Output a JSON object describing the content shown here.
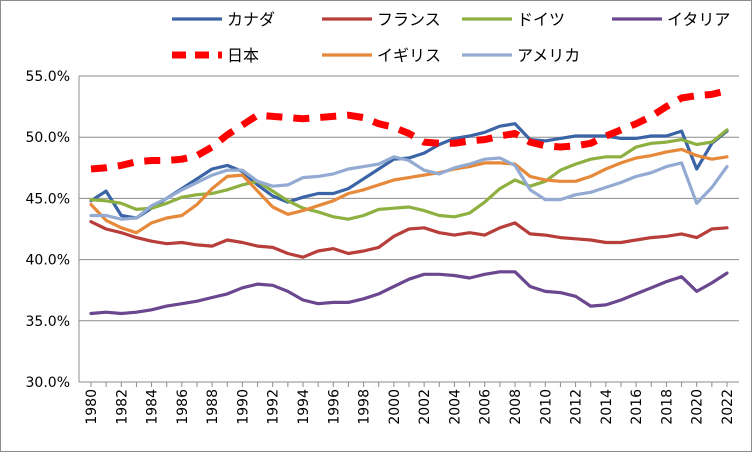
{
  "chart_data": {
    "type": "line",
    "title": "",
    "xlabel": "",
    "ylabel": "",
    "ylim": [
      30,
      55
    ],
    "y_tick_labels": [
      "55.0%",
      "50.0%",
      "45.0%",
      "40.0%",
      "35.0%",
      "30.0%"
    ],
    "y_ticks": [
      55,
      50,
      45,
      40,
      35,
      30
    ],
    "x_ticks": [
      1980,
      1982,
      1984,
      1986,
      1988,
      1990,
      1992,
      1994,
      1996,
      1998,
      2000,
      2002,
      2004,
      2006,
      2008,
      2010,
      2012,
      2014,
      2016,
      2018,
      2020,
      2022
    ],
    "x_tick_labels": [
      "1980",
      "1982",
      "1984",
      "1986",
      "1988",
      "1990",
      "1992",
      "1994",
      "1996",
      "1998",
      "2000",
      "2002",
      "2004",
      "2006",
      "2008",
      "2010",
      "2012",
      "2014",
      "2016",
      "2018",
      "2020",
      "2022"
    ],
    "grid": "horizontal",
    "legend_position": "top",
    "x": [
      1980,
      1981,
      1982,
      1983,
      1984,
      1985,
      1986,
      1987,
      1988,
      1989,
      1990,
      1991,
      1992,
      1993,
      1994,
      1995,
      1996,
      1997,
      1998,
      1999,
      2000,
      2001,
      2002,
      2003,
      2004,
      2005,
      2006,
      2007,
      2008,
      2009,
      2010,
      2011,
      2012,
      2013,
      2014,
      2015,
      2016,
      2017,
      2018,
      2019,
      2020,
      2021,
      2022
    ],
    "series": [
      {
        "name": "カナダ",
        "color": "#3a64a5",
        "dash": false,
        "values": [
          44.8,
          45.6,
          43.6,
          43.4,
          44.2,
          45.0,
          45.8,
          46.6,
          47.4,
          47.7,
          47.2,
          46.1,
          45.2,
          44.7,
          45.1,
          45.4,
          45.4,
          45.8,
          46.6,
          47.4,
          48.2,
          48.3,
          48.7,
          49.4,
          49.9,
          50.1,
          50.4,
          50.9,
          51.1,
          49.8,
          49.7,
          49.9,
          50.1,
          50.1,
          50.1,
          49.9,
          49.9,
          50.1,
          50.1,
          50.5,
          47.4,
          49.5,
          50.5
        ]
      },
      {
        "name": "フランス",
        "color": "#b73e3a",
        "dash": false,
        "values": [
          43.1,
          42.5,
          42.2,
          41.8,
          41.5,
          41.3,
          41.4,
          41.2,
          41.1,
          41.6,
          41.4,
          41.1,
          41.0,
          40.5,
          40.2,
          40.7,
          40.9,
          40.5,
          40.7,
          41.0,
          41.9,
          42.5,
          42.6,
          42.2,
          42.0,
          42.2,
          42.0,
          42.6,
          43.0,
          42.1,
          42.0,
          41.8,
          41.7,
          41.6,
          41.4,
          41.4,
          41.6,
          41.8,
          41.9,
          42.1,
          41.8,
          42.5,
          42.6
        ]
      },
      {
        "name": "ドイツ",
        "color": "#8db041",
        "dash": false,
        "values": [
          44.9,
          44.8,
          44.6,
          44.1,
          44.2,
          44.6,
          45.1,
          45.3,
          45.4,
          45.7,
          46.1,
          46.4,
          45.6,
          44.8,
          44.2,
          43.9,
          43.5,
          43.3,
          43.6,
          44.1,
          44.2,
          44.3,
          44.0,
          43.6,
          43.5,
          43.8,
          44.7,
          45.8,
          46.5,
          46.0,
          46.4,
          47.3,
          47.8,
          48.2,
          48.4,
          48.4,
          49.2,
          49.5,
          49.6,
          49.8,
          49.4,
          49.6,
          50.6
        ]
      },
      {
        "name": "イタリア",
        "color": "#6a478e",
        "dash": false,
        "values": [
          35.6,
          35.7,
          35.6,
          35.7,
          35.9,
          36.2,
          36.4,
          36.6,
          36.9,
          37.2,
          37.7,
          38.0,
          37.9,
          37.4,
          36.7,
          36.4,
          36.5,
          36.5,
          36.8,
          37.2,
          37.8,
          38.4,
          38.8,
          38.8,
          38.7,
          38.5,
          38.8,
          39.0,
          39.0,
          37.8,
          37.4,
          37.3,
          37.0,
          36.2,
          36.3,
          36.7,
          37.2,
          37.7,
          38.2,
          38.6,
          37.4,
          38.1,
          38.9
        ]
      },
      {
        "name": "日本",
        "color": "#ff0000",
        "dash": true,
        "values": [
          47.4,
          47.5,
          47.7,
          48.0,
          48.1,
          48.1,
          48.2,
          48.5,
          49.2,
          50.2,
          51.0,
          51.8,
          51.7,
          51.6,
          51.5,
          51.6,
          51.7,
          51.8,
          51.6,
          51.1,
          50.8,
          50.3,
          49.6,
          49.5,
          49.5,
          49.7,
          49.8,
          50.1,
          50.3,
          49.6,
          49.3,
          49.2,
          49.3,
          49.5,
          50.1,
          50.6,
          51.1,
          51.7,
          52.5,
          53.2,
          53.4,
          53.5,
          53.8
        ]
      },
      {
        "name": "イギリス",
        "color": "#e6893a",
        "dash": false,
        "values": [
          44.5,
          43.2,
          42.6,
          42.2,
          43.0,
          43.4,
          43.6,
          44.5,
          45.8,
          46.8,
          46.9,
          45.6,
          44.3,
          43.7,
          44.0,
          44.4,
          44.8,
          45.4,
          45.7,
          46.1,
          46.5,
          46.7,
          46.9,
          47.1,
          47.4,
          47.6,
          47.9,
          47.9,
          47.8,
          46.8,
          46.5,
          46.4,
          46.4,
          46.8,
          47.4,
          47.9,
          48.3,
          48.5,
          48.8,
          49.0,
          48.5,
          48.2,
          48.4
        ]
      },
      {
        "name": "アメリカ",
        "color": "#93abd3",
        "dash": false,
        "values": [
          43.6,
          43.6,
          43.3,
          43.4,
          44.4,
          45.0,
          45.7,
          46.3,
          46.9,
          47.3,
          47.3,
          46.4,
          46.0,
          46.1,
          46.7,
          46.8,
          47.0,
          47.4,
          47.6,
          47.8,
          48.4,
          48.1,
          47.3,
          47.0,
          47.5,
          47.8,
          48.2,
          48.3,
          47.7,
          45.7,
          44.9,
          44.9,
          45.3,
          45.5,
          45.9,
          46.3,
          46.8,
          47.1,
          47.6,
          47.9,
          44.6,
          45.9,
          47.6
        ]
      }
    ]
  }
}
